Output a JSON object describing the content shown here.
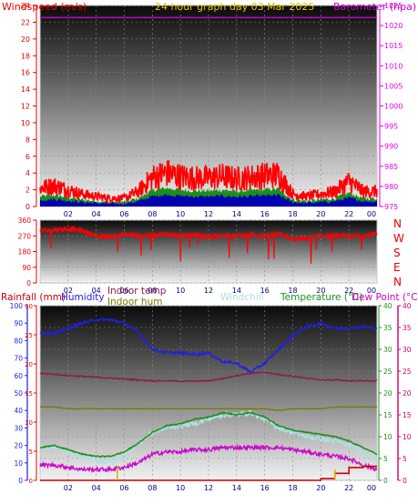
{
  "header": {
    "windspeed_label": "Windspeed (m/s)",
    "title": "24 hour graph day   03 Mar 2025",
    "barometer_label": "Barometer (hpa)"
  },
  "colors": {
    "wind": "#ff0000",
    "gust_fill": "#0000b0",
    "direction": "#ff0000",
    "baro": "#cc00cc",
    "rain": "#cc0000",
    "humidity": "#1f1fe6",
    "indoor_temp": "#8b1a4a",
    "indoor_hum": "#7a7a00",
    "windchill": "#b0e0e0",
    "temperature": "#1f8f1f",
    "dewpoint": "#cc00cc",
    "axis_left_red": "#e60000",
    "axis_baro": "#e600e6",
    "axis_hum": "#1f1fe6",
    "axis_temp": "#1f8f1f",
    "axis_dew": "#cc0066"
  },
  "x_ticks": [
    "02",
    "04",
    "06",
    "08",
    "10",
    "12",
    "14",
    "16",
    "18",
    "20",
    "22",
    "00"
  ],
  "chart_data": [
    {
      "type": "line",
      "title": "24 hour graph day   03 Mar 2025",
      "ylabel": "Windspeed (m/s)",
      "ylabel_right": "Barometer (hpa)",
      "ylim": [
        0,
        24
      ],
      "ylim_right": [
        975,
        1025
      ],
      "y_ticks": [
        "0",
        "2",
        "4",
        "6",
        "8",
        "10",
        "12",
        "14",
        "16",
        "18",
        "20",
        "22",
        "24"
      ],
      "y_ticks_right": [
        "975",
        "980",
        "985",
        "990",
        "995",
        "1000",
        "1005",
        "1010",
        "1015",
        "1020",
        "1025"
      ],
      "x": [
        0,
        1,
        2,
        3,
        4,
        5,
        6,
        7,
        8,
        9,
        10,
        11,
        12,
        13,
        14,
        15,
        16,
        17,
        18,
        19,
        20,
        21,
        22,
        23,
        24
      ],
      "series": [
        {
          "name": "Windspeed",
          "values": [
            2.2,
            2.5,
            2.0,
            1.5,
            1.2,
            1.0,
            1.0,
            1.8,
            3.5,
            4.0,
            3.6,
            3.4,
            3.4,
            3.6,
            3.3,
            3.5,
            3.7,
            3.8,
            1.5,
            1.2,
            1.5,
            1.8,
            3.0,
            1.8,
            1.8
          ]
        },
        {
          "name": "Barometer",
          "values": [
            1022,
            1022,
            1022,
            1022,
            1022,
            1022,
            1022,
            1022,
            1022,
            1022,
            1022,
            1022,
            1022,
            1022,
            1022,
            1022,
            1022,
            1022,
            1022,
            1022,
            1022,
            1022,
            1022,
            1022,
            1022
          ]
        }
      ]
    },
    {
      "type": "line",
      "ylim": [
        0,
        360
      ],
      "y_ticks": [
        "0",
        "90",
        "180",
        "270",
        "360"
      ],
      "direction_labels": [
        "N",
        "W",
        "S",
        "E",
        "N"
      ],
      "x": [
        0,
        1,
        2,
        3,
        4,
        5,
        6,
        7,
        8,
        9,
        10,
        11,
        12,
        13,
        14,
        15,
        16,
        17,
        18,
        19,
        20,
        21,
        22,
        23,
        24
      ],
      "series": [
        {
          "name": "Wind direction",
          "values": [
            300,
            305,
            310,
            300,
            270,
            265,
            280,
            270,
            275,
            280,
            270,
            275,
            265,
            270,
            270,
            275,
            270,
            280,
            250,
            255,
            270,
            270,
            265,
            270,
            280
          ]
        }
      ]
    },
    {
      "type": "line",
      "legend": [
        "Rainfall (mm)",
        "Humidity",
        "Indoor temp",
        "Indoor hum",
        "Windchill",
        "Temperature (°C)",
        "Dew Point (°C)"
      ],
      "ylim_rain": [
        0,
        30
      ],
      "ylim_hum": [
        0,
        100
      ],
      "ylim_temp": [
        0,
        40
      ],
      "y_ticks_hum": [
        "0",
        "10",
        "20",
        "30",
        "40",
        "50",
        "60",
        "70",
        "80",
        "90",
        "100"
      ],
      "y_ticks_rain": [
        "0",
        "5",
        "10",
        "15",
        "20",
        "25",
        "30"
      ],
      "y_ticks_temp": [
        "0",
        "5",
        "10",
        "15",
        "20",
        "25",
        "30",
        "35",
        "40"
      ],
      "x": [
        0,
        1,
        2,
        3,
        4,
        5,
        6,
        7,
        8,
        9,
        10,
        11,
        12,
        13,
        14,
        15,
        16,
        17,
        18,
        19,
        20,
        21,
        22,
        23,
        24
      ],
      "series": [
        {
          "name": "Humidity",
          "values": [
            85,
            84,
            87,
            90,
            92,
            92,
            90,
            85,
            75,
            73,
            73,
            72,
            73,
            68,
            67,
            62,
            67,
            75,
            83,
            88,
            90,
            87,
            87,
            88,
            87
          ]
        },
        {
          "name": "Indoor temp",
          "values": [
            24.5,
            24.3,
            24.0,
            23.8,
            23.6,
            23.4,
            23.2,
            23.0,
            22.8,
            22.8,
            22.7,
            22.7,
            22.8,
            23.3,
            24.0,
            24.5,
            24.8,
            24.2,
            23.8,
            23.4,
            23.0,
            23.0,
            22.8,
            22.8,
            22.8
          ]
        },
        {
          "name": "Indoor hum",
          "values": [
            42,
            42,
            41,
            41,
            41,
            41,
            41,
            41,
            41,
            41,
            41,
            41,
            41,
            41,
            41,
            41,
            41,
            40,
            41,
            41,
            41,
            42,
            42,
            42,
            42
          ]
        },
        {
          "name": "Windchill",
          "values": [
            7.5,
            7.5,
            6.5,
            5.5,
            4.5,
            4.0,
            5.5,
            8.5,
            11.0,
            12.0,
            12.5,
            13.0,
            14.0,
            15.0,
            15.0,
            15.5,
            14.0,
            12.0,
            11.0,
            10.0,
            9.5,
            9.0,
            8.0,
            6.5,
            4.5
          ]
        },
        {
          "name": "Temperature (°C)",
          "values": [
            7.5,
            8.0,
            7.0,
            6.0,
            5.5,
            5.5,
            6.5,
            8.5,
            11.0,
            12.5,
            13.0,
            14.0,
            14.5,
            15.5,
            15.0,
            15.5,
            14.5,
            12.5,
            11.5,
            11.0,
            10.5,
            10.0,
            9.0,
            7.5,
            6.0
          ]
        },
        {
          "name": "Dew Point (°C)",
          "values": [
            3.5,
            3.5,
            3.0,
            2.5,
            2.5,
            2.5,
            3.0,
            4.0,
            6.0,
            6.5,
            6.5,
            7.0,
            7.0,
            7.5,
            7.5,
            7.5,
            7.5,
            7.5,
            7.0,
            6.5,
            6.0,
            5.5,
            5.0,
            3.5,
            2.5
          ]
        },
        {
          "name": "Rainfall (mm)",
          "values": [
            0,
            0,
            0,
            0,
            0,
            0,
            0,
            0,
            0,
            0,
            0,
            0,
            0,
            0,
            0,
            0,
            0,
            0,
            0,
            0,
            0.3,
            1.2,
            2.2,
            2.4,
            2.4
          ]
        }
      ]
    }
  ]
}
